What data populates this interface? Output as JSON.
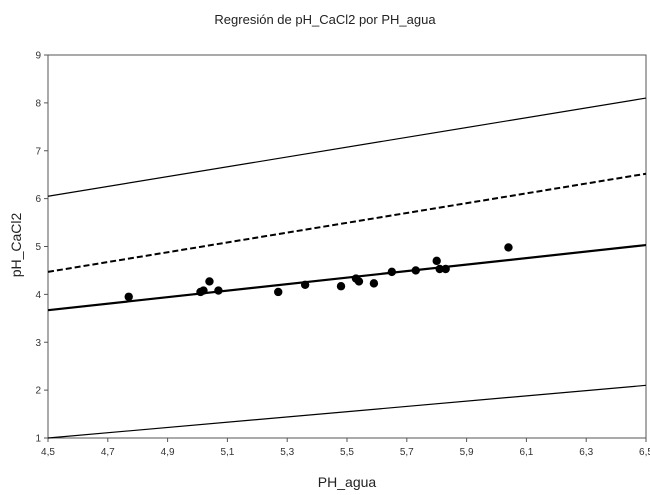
{
  "chart_data": {
    "type": "scatter",
    "title": "Regresión de pH_CaCl2 por PH_agua",
    "xlabel": "PH_agua",
    "ylabel": "pH_CaCl2",
    "xlim": [
      4.5,
      6.5
    ],
    "ylim": [
      1,
      9
    ],
    "x_ticks": [
      "4,5",
      "4,7",
      "4,9",
      "5,1",
      "5,3",
      "5,5",
      "5,7",
      "5,9",
      "6,1",
      "6,3",
      "6,5"
    ],
    "y_ticks": [
      "1",
      "2",
      "3",
      "4",
      "5",
      "6",
      "7",
      "8",
      "9"
    ],
    "grid": false,
    "legend": "none",
    "points": [
      [
        4.77,
        3.95
      ],
      [
        5.01,
        4.05
      ],
      [
        5.02,
        4.08
      ],
      [
        5.04,
        4.27
      ],
      [
        5.07,
        4.08
      ],
      [
        5.27,
        4.05
      ],
      [
        5.36,
        4.2
      ],
      [
        5.48,
        4.17
      ],
      [
        5.53,
        4.33
      ],
      [
        5.54,
        4.27
      ],
      [
        5.59,
        4.23
      ],
      [
        5.65,
        4.47
      ],
      [
        5.73,
        4.5
      ],
      [
        5.8,
        4.7
      ],
      [
        5.81,
        4.53
      ],
      [
        5.83,
        4.53
      ],
      [
        6.04,
        4.98
      ]
    ],
    "lines": [
      {
        "style": "upper-prediction",
        "x": [
          4.5,
          6.5
        ],
        "y": [
          6.05,
          8.1
        ]
      },
      {
        "style": "upper-confidence-dashed",
        "x": [
          4.5,
          6.5
        ],
        "y": [
          4.47,
          6.52
        ]
      },
      {
        "style": "regression-fit",
        "x": [
          4.5,
          6.5
        ],
        "y": [
          3.67,
          5.03
        ]
      },
      {
        "style": "lower-prediction",
        "x": [
          4.5,
          6.5
        ],
        "y": [
          1.0,
          2.1
        ]
      }
    ]
  }
}
